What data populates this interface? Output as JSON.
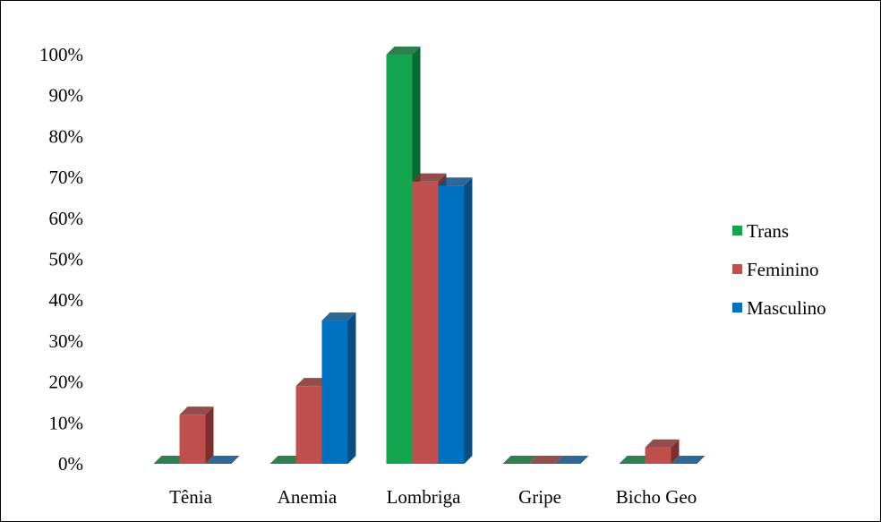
{
  "chart_data": {
    "type": "bar",
    "categories": [
      "Tênia",
      "Anemia",
      "Lombriga",
      "Gripe",
      "Bicho Geo"
    ],
    "series": [
      {
        "name": "Trans",
        "values": [
          0,
          0,
          100,
          0,
          0
        ],
        "color": "#13a64e",
        "dark": "#0b6a31"
      },
      {
        "name": "Feminino",
        "values": [
          12,
          19,
          69,
          0,
          4
        ],
        "color": "#c0504d",
        "dark": "#7e2f2d"
      },
      {
        "name": "Masculino",
        "values": [
          0,
          35,
          68,
          0,
          0
        ],
        "color": "#0070c0",
        "dark": "#0b4c82"
      }
    ],
    "y_tick_labels": [
      "0%",
      "10%",
      "20%",
      "30%",
      "40%",
      "50%",
      "60%",
      "70%",
      "80%",
      "90%",
      "100%"
    ],
    "ylim": [
      0,
      100
    ],
    "grid": false,
    "legend_position": "right",
    "chart_style": "3d-clustered-column"
  }
}
